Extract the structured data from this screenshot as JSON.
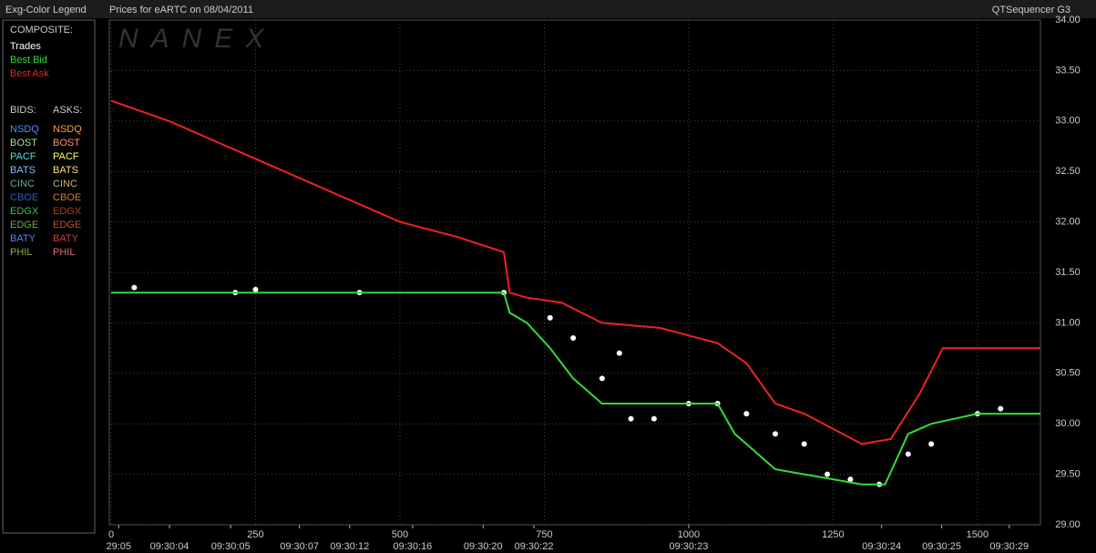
{
  "header": {
    "left": "Exg-Color Legend",
    "center": "Prices for  eARTC  on  08/04/2011",
    "right": "QTSequencer G3"
  },
  "legend_panel": {
    "composite_header": "COMPOSITE:",
    "bids_header": "BIDS:",
    "asks_header": "ASKS:",
    "bids": [
      {
        "name": "NSDQ",
        "color": "#4f8fff"
      },
      {
        "name": "BOST",
        "color": "#9fe89f"
      },
      {
        "name": "PACF",
        "color": "#4fe0e0"
      },
      {
        "name": "BATS",
        "color": "#8fbfff"
      },
      {
        "name": "CINC",
        "color": "#6fa0a0"
      },
      {
        "name": "CBOE",
        "color": "#2f5fbf"
      },
      {
        "name": "EDGX",
        "color": "#3fbf5f"
      },
      {
        "name": "EDGE",
        "color": "#5faf5f"
      },
      {
        "name": "BATY",
        "color": "#5f7fff"
      },
      {
        "name": "PHIL",
        "color": "#8faf3f"
      }
    ],
    "asks": [
      {
        "name": "NSDQ",
        "color": "#ffa040"
      },
      {
        "name": "BOST",
        "color": "#ff8f6f"
      },
      {
        "name": "PACF",
        "color": "#ffff60"
      },
      {
        "name": "BATS",
        "color": "#ffe080"
      },
      {
        "name": "CINC",
        "color": "#cfb080"
      },
      {
        "name": "CBOE",
        "color": "#d08030"
      },
      {
        "name": "EDGX",
        "color": "#b04020"
      },
      {
        "name": "EDGE",
        "color": "#c05030"
      },
      {
        "name": "BATY",
        "color": "#d04040"
      },
      {
        "name": "PHIL",
        "color": "#e07070"
      }
    ]
  },
  "chart_data": {
    "type": "line",
    "watermark": "NANEX",
    "xlim": [
      0,
      1609
    ],
    "xticks": [
      0,
      250,
      500,
      750,
      1000,
      1250,
      1500
    ],
    "time_labels": [
      {
        "value": 13,
        "label": "29:05"
      },
      {
        "value": 101,
        "label": "09:30:04"
      },
      {
        "value": 207,
        "label": "09:30:05"
      },
      {
        "value": 326,
        "label": "09:30:07"
      },
      {
        "value": 413,
        "label": "09:30:12"
      },
      {
        "value": 522,
        "label": "09:30:16"
      },
      {
        "value": 644,
        "label": "09:30:20"
      },
      {
        "value": 732,
        "label": "09:30:22"
      },
      {
        "value": 1000,
        "label": "09:30:23"
      },
      {
        "value": 1334,
        "label": "09:30:24"
      },
      {
        "value": 1438,
        "label": "09:30:25"
      },
      {
        "value": 1555,
        "label": "09:30:29"
      }
    ],
    "ylim": [
      29,
      34
    ],
    "yticks": [
      {
        "value": 29,
        "label": "29.00"
      },
      {
        "value": 29.5,
        "label": "29.50"
      },
      {
        "value": 30,
        "label": "30.00"
      },
      {
        "value": 30.5,
        "label": "30.50"
      },
      {
        "value": 31,
        "label": "31.00"
      },
      {
        "value": 31.5,
        "label": "31.50"
      },
      {
        "value": 32,
        "label": "32.00"
      },
      {
        "value": 32.5,
        "label": "32.50"
      },
      {
        "value": 33,
        "label": "33.00"
      },
      {
        "value": 33.5,
        "label": "33.50"
      },
      {
        "value": 34,
        "label": "34.00"
      }
    ],
    "grid": true,
    "series": [
      {
        "name": "Trades",
        "color": "#ffffff",
        "style": "points",
        "x": [
          40,
          215,
          250,
          430,
          680,
          760,
          800,
          850,
          880,
          900,
          940,
          1000,
          1050,
          1100,
          1150,
          1200,
          1240,
          1280,
          1330,
          1380,
          1420,
          1500,
          1540
        ],
        "values": [
          31.35,
          31.3,
          31.33,
          31.3,
          31.3,
          31.05,
          30.85,
          30.45,
          30.7,
          30.05,
          30.05,
          30.2,
          30.2,
          30.1,
          29.9,
          29.8,
          29.5,
          29.45,
          29.4,
          29.7,
          29.8,
          30.1,
          30.15
        ]
      },
      {
        "name": "Best Bid",
        "color": "#33dd33",
        "style": "line",
        "x": [
          0,
          100,
          300,
          500,
          680,
          690,
          720,
          760,
          800,
          850,
          900,
          950,
          1000,
          1050,
          1080,
          1100,
          1150,
          1200,
          1250,
          1300,
          1340,
          1380,
          1420,
          1500,
          1560,
          1609
        ],
        "values": [
          31.3,
          31.3,
          31.3,
          31.3,
          31.3,
          31.1,
          31.0,
          30.75,
          30.45,
          30.2,
          30.2,
          30.2,
          30.2,
          30.2,
          29.9,
          29.8,
          29.55,
          29.5,
          29.45,
          29.4,
          29.4,
          29.9,
          30.0,
          30.1,
          30.1,
          30.1
        ]
      },
      {
        "name": "Best Ask",
        "color": "#ee2222",
        "style": "line",
        "x": [
          0,
          100,
          200,
          300,
          400,
          500,
          600,
          680,
          690,
          720,
          780,
          850,
          950,
          1050,
          1100,
          1150,
          1200,
          1250,
          1300,
          1350,
          1400,
          1440,
          1500,
          1560,
          1609
        ],
        "values": [
          33.2,
          33.0,
          32.75,
          32.5,
          32.25,
          32.0,
          31.85,
          31.7,
          31.3,
          31.25,
          31.2,
          31.0,
          30.95,
          30.8,
          30.6,
          30.2,
          30.1,
          29.95,
          29.8,
          29.85,
          30.3,
          30.75,
          30.75,
          30.75,
          30.75
        ]
      }
    ]
  }
}
